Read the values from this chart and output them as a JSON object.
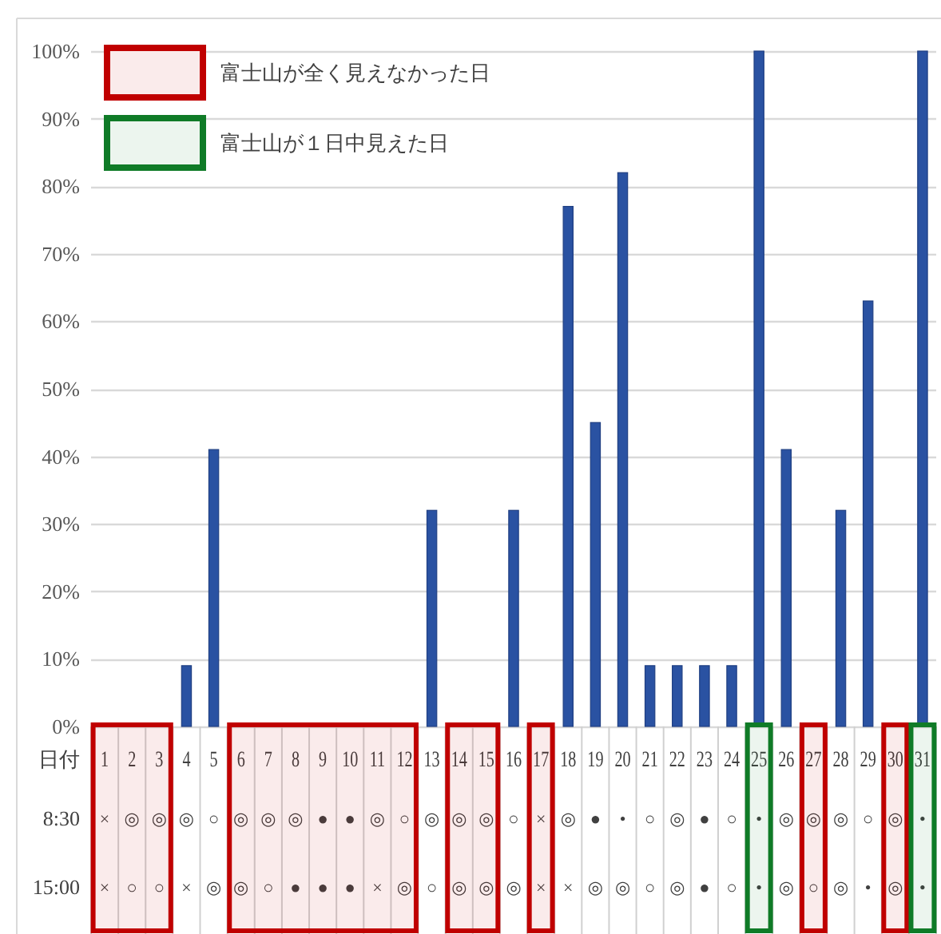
{
  "chart_data": [
    {
      "type": "bar",
      "x": [
        1,
        2,
        3,
        4,
        5,
        6,
        7,
        8,
        9,
        10,
        11,
        12,
        13,
        14,
        15,
        16,
        17,
        18,
        19,
        20,
        21,
        22,
        23,
        24,
        25,
        26,
        27,
        28,
        29,
        30,
        31
      ],
      "values": [
        0,
        0,
        0,
        9,
        41,
        0,
        0,
        0,
        0,
        0,
        0,
        0,
        32,
        0,
        0,
        32,
        0,
        77,
        45,
        82,
        9,
        9,
        9,
        9,
        100,
        41,
        0,
        32,
        63,
        0,
        100
      ],
      "color": "#2a52a2",
      "xlim": [
        0.5,
        31.5
      ],
      "ylim": [
        0,
        100
      ],
      "yticks": [
        {
          "value": 0,
          "label": "0%"
        },
        {
          "value": 10,
          "label": "10%"
        },
        {
          "value": 20,
          "label": "20%"
        },
        {
          "value": 30,
          "label": "30%"
        },
        {
          "value": 40,
          "label": "40%"
        },
        {
          "value": 50,
          "label": "50%"
        },
        {
          "value": 60,
          "label": "60%"
        },
        {
          "value": 70,
          "label": "70%"
        },
        {
          "value": 80,
          "label": "80%"
        },
        {
          "value": 90,
          "label": "90%"
        },
        {
          "value": 100,
          "label": "100%"
        }
      ],
      "grid": "y",
      "tick_labels": "y"
    },
    {
      "type": "heatmap",
      "x": [
        1,
        2,
        3,
        4,
        5,
        6,
        7,
        8,
        9,
        10,
        11,
        12,
        13,
        14,
        15,
        16,
        17,
        18,
        19,
        20,
        21,
        22,
        23,
        24,
        25,
        26,
        27,
        28,
        29,
        30,
        31
      ],
      "xlabel": "日付",
      "xlim": [
        0.5,
        31.5
      ],
      "xticks": [
        1,
        2,
        3,
        4,
        5,
        6,
        7,
        8,
        9,
        10,
        11,
        12,
        13,
        14,
        15,
        16,
        17,
        18,
        19,
        20,
        21,
        22,
        23,
        24,
        25,
        26,
        27,
        28,
        29,
        30,
        31
      ],
      "y_categories": [
        "8:30",
        "15:00"
      ],
      "cells": [
        [
          null,
          null,
          null,
          null,
          null,
          null,
          null,
          null,
          null,
          null,
          null,
          null,
          null,
          null,
          null,
          null,
          null,
          null,
          null,
          null,
          null,
          null,
          null,
          null,
          null,
          null,
          null,
          null,
          null,
          null,
          null
        ],
        [
          null,
          null,
          null,
          null,
          null,
          null,
          null,
          null,
          null,
          null,
          null,
          null,
          null,
          null,
          null,
          null,
          null,
          null,
          null,
          null,
          null,
          null,
          null,
          null,
          null,
          null,
          null,
          null,
          null,
          null,
          null
        ]
      ],
      "cell_labels": [
        [
          "×",
          "◎",
          "◎",
          "◎",
          "○",
          "◎",
          "◎",
          "◎",
          "●",
          "●",
          "◎",
          "○",
          "◎",
          "◎",
          "◎",
          "○",
          "×",
          "◎",
          "●",
          "•",
          "○",
          "◎",
          "●",
          "○",
          "•",
          "◎",
          "◎",
          "◎",
          "○",
          "◎",
          "•"
        ],
        [
          "×",
          "○",
          "○",
          "×",
          "◎",
          "◎",
          "○",
          "●",
          "●",
          "●",
          "×",
          "◎",
          "○",
          "◎",
          "◎",
          "◎",
          "×",
          "×",
          "◎",
          "◎",
          "○",
          "◎",
          "●",
          "○",
          "•",
          "◎",
          "○",
          "◎",
          "•",
          "◎",
          "•"
        ]
      ],
      "legend": "top left",
      "bands": [
        {
          "axis": "x",
          "from": 0.5,
          "to": 3.5,
          "color": "#c00000",
          "label": "富士山が全く見えなかった日"
        },
        {
          "axis": "x",
          "from": 5.5,
          "to": 12.5,
          "color": "#c00000"
        },
        {
          "axis": "x",
          "from": 13.5,
          "to": 15.5,
          "color": "#c00000"
        },
        {
          "axis": "x",
          "from": 16.5,
          "to": 17.5,
          "color": "#c00000"
        },
        {
          "axis": "x",
          "from": 26.5,
          "to": 27.5,
          "color": "#c00000"
        },
        {
          "axis": "x",
          "from": 29.5,
          "to": 30.5,
          "color": "#c00000"
        },
        {
          "axis": "x",
          "from": 24.5,
          "to": 25.5,
          "color": "#0f7b27",
          "label": "富士山が１日中見えた日"
        },
        {
          "axis": "x",
          "from": 30.5,
          "to": 31.5,
          "color": "#0f7b27"
        }
      ]
    }
  ]
}
